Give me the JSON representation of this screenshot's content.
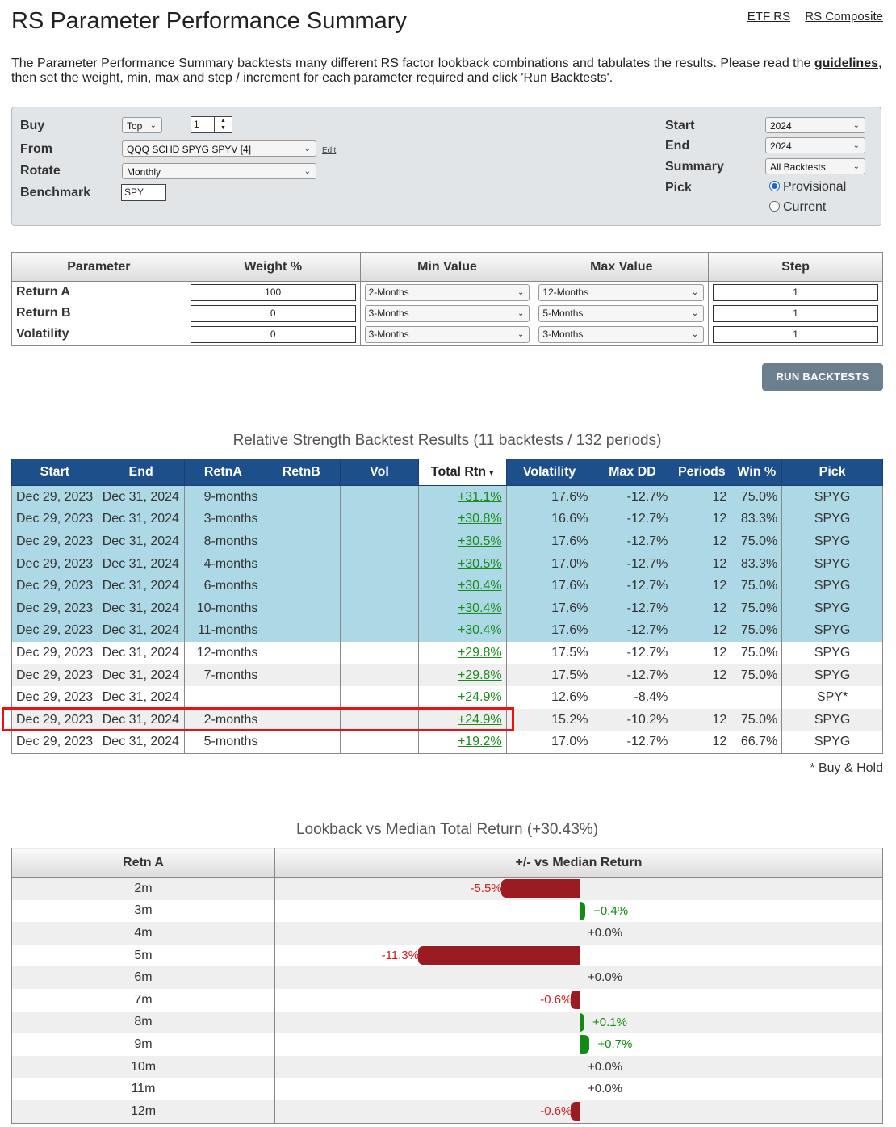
{
  "page": {
    "title": "RS Parameter Performance Summary",
    "links": [
      "ETF RS",
      "RS Composite"
    ],
    "intro_before": "The Parameter Performance Summary backtests many different RS factor lookback combinations and tabulates the results.  Please read the ",
    "intro_link": "guidelines",
    "intro_after": ", then set the weight, min, max and step / increment for each parameter required and click 'Run Backtests'."
  },
  "settings": {
    "buy_label": "Buy",
    "buy_mode": "Top",
    "buy_count": "1",
    "from_label": "From",
    "from_value": "QQQ SCHD SPYG SPYV [4]",
    "edit_label": "Edit",
    "rotate_label": "Rotate",
    "rotate_value": "Monthly",
    "benchmark_label": "Benchmark",
    "benchmark_value": "SPY",
    "start_label": "Start",
    "start_value": "2024",
    "end_label": "End",
    "end_value": "2024",
    "summary_label": "Summary",
    "summary_value": "All Backtests",
    "pick_label": "Pick",
    "pick_options": [
      "Provisional",
      "Current"
    ],
    "pick_selected": "Provisional"
  },
  "parameters": {
    "headers": [
      "Parameter",
      "Weight %",
      "Min Value",
      "Max Value",
      "Step"
    ],
    "rows": [
      {
        "name": "Return A",
        "weight": "100",
        "min": "2-Months",
        "max": "12-Months",
        "step": "1"
      },
      {
        "name": "Return B",
        "weight": "0",
        "min": "3-Months",
        "max": "5-Months",
        "step": "1"
      },
      {
        "name": "Volatility",
        "weight": "0",
        "min": "3-Months",
        "max": "3-Months",
        "step": "1"
      }
    ]
  },
  "run_button": "RUN BACKTESTS",
  "results": {
    "title": "Relative Strength Backtest Results (11 backtests / 132 periods)",
    "headers": [
      "Start",
      "End",
      "RetnA",
      "RetnB",
      "Vol",
      "Total Rtn",
      "Volatility",
      "Max DD",
      "Periods",
      "Win %",
      "Pick"
    ],
    "sorted_indicator": "▾",
    "rows": [
      [
        "Dec 29, 2023",
        "Dec 31, 2024",
        "9-months",
        "",
        "",
        "+31.1%",
        "17.6%",
        "-12.7%",
        "12",
        "75.0%",
        "SPYG"
      ],
      [
        "Dec 29, 2023",
        "Dec 31, 2024",
        "3-months",
        "",
        "",
        "+30.8%",
        "16.6%",
        "-12.7%",
        "12",
        "83.3%",
        "SPYG"
      ],
      [
        "Dec 29, 2023",
        "Dec 31, 2024",
        "8-months",
        "",
        "",
        "+30.5%",
        "17.6%",
        "-12.7%",
        "12",
        "75.0%",
        "SPYG"
      ],
      [
        "Dec 29, 2023",
        "Dec 31, 2024",
        "4-months",
        "",
        "",
        "+30.5%",
        "17.0%",
        "-12.7%",
        "12",
        "83.3%",
        "SPYG"
      ],
      [
        "Dec 29, 2023",
        "Dec 31, 2024",
        "6-months",
        "",
        "",
        "+30.4%",
        "17.6%",
        "-12.7%",
        "12",
        "75.0%",
        "SPYG"
      ],
      [
        "Dec 29, 2023",
        "Dec 31, 2024",
        "10-months",
        "",
        "",
        "+30.4%",
        "17.6%",
        "-12.7%",
        "12",
        "75.0%",
        "SPYG"
      ],
      [
        "Dec 29, 2023",
        "Dec 31, 2024",
        "11-months",
        "",
        "",
        "+30.4%",
        "17.6%",
        "-12.7%",
        "12",
        "75.0%",
        "SPYG"
      ],
      [
        "Dec 29, 2023",
        "Dec 31, 2024",
        "12-months",
        "",
        "",
        "+29.8%",
        "17.5%",
        "-12.7%",
        "12",
        "75.0%",
        "SPYG"
      ],
      [
        "Dec 29, 2023",
        "Dec 31, 2024",
        "7-months",
        "",
        "",
        "+29.8%",
        "17.5%",
        "-12.7%",
        "12",
        "75.0%",
        "SPYG"
      ],
      [
        "Dec 29, 2023",
        "Dec 31, 2024",
        "",
        "",
        "",
        "+24.9%",
        "12.6%",
        "-8.4%",
        "",
        "",
        "SPY*"
      ],
      [
        "Dec 29, 2023",
        "Dec 31, 2024",
        "2-months",
        "",
        "",
        "+24.9%",
        "15.2%",
        "-10.2%",
        "12",
        "75.0%",
        "SPYG"
      ],
      [
        "Dec 29, 2023",
        "Dec 31, 2024",
        "5-months",
        "",
        "",
        "+19.2%",
        "17.0%",
        "-12.7%",
        "12",
        "66.7%",
        "SPYG"
      ]
    ],
    "row_styles": [
      "hl",
      "hl",
      "hl",
      "hl",
      "hl",
      "hl",
      "hl",
      "white",
      "alt",
      "white",
      "alt",
      "white"
    ],
    "footnote": "* Buy & Hold"
  },
  "lookback": {
    "title": "Lookback vs Median Total Return (+30.43%)",
    "headers": [
      "Retn A",
      "+/- vs Median Return"
    ],
    "chart_data": {
      "type": "bar",
      "categories": [
        "2m",
        "3m",
        "4m",
        "5m",
        "6m",
        "7m",
        "8m",
        "9m",
        "10m",
        "11m",
        "12m"
      ],
      "values": [
        -5.5,
        0.4,
        0.0,
        -11.3,
        0.0,
        -0.6,
        0.1,
        0.7,
        0.0,
        0.0,
        -0.6
      ],
      "labels": [
        "-5.5%",
        "+0.4%",
        "+0.0%",
        "-11.3%",
        "+0.0%",
        "-0.6%",
        "+0.1%",
        "+0.7%",
        "+0.0%",
        "+0.0%",
        "-0.6%"
      ],
      "colors": {
        "negative": "#9a1c22",
        "positive": "#138a13"
      }
    }
  }
}
